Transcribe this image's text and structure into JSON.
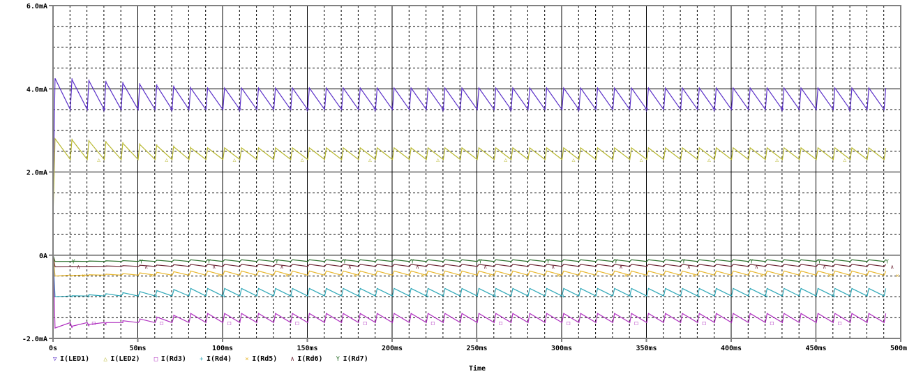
{
  "chart_data": {
    "type": "line",
    "title": "",
    "xlabel": "Time",
    "ylabel": "",
    "xlim": [
      0,
      500
    ],
    "ylim": [
      -2.0,
      6.0
    ],
    "x_unit": "ms",
    "y_unit": "mA",
    "grid": true,
    "legend_position": "bottom-left",
    "x_ticks": [
      "0s",
      "50ms",
      "100ms",
      "150ms",
      "200ms",
      "250ms",
      "300ms",
      "350ms",
      "400ms",
      "450ms",
      "500ms"
    ],
    "y_ticks": [
      "6.0mA",
      "4.0mA",
      "2.0mA",
      "0A",
      "-2.0mA"
    ],
    "period_ms": 10,
    "series": [
      {
        "name": "I(LED1)",
        "color": "#5a2fc8",
        "marker": "▽",
        "start": 1.4,
        "initial_peak": 4.25,
        "peak": 4.02,
        "trough": 3.5
      },
      {
        "name": "I(LED2)",
        "color": "#b8b830",
        "marker": "△",
        "start": 0.9,
        "initial_peak": 2.8,
        "peak": 2.58,
        "trough": 2.3
      },
      {
        "name": "I(Rd3)",
        "color": "#b030c0",
        "marker": "□",
        "start": 0.0,
        "initial_peak": -1.75,
        "peak": -1.4,
        "trough": -1.62
      },
      {
        "name": "I(Rd4)",
        "color": "#30a8b8",
        "marker": "+",
        "start": 0.0,
        "initial_peak": -1.0,
        "peak": -0.8,
        "trough": -0.98
      },
      {
        "name": "I(Rd5)",
        "color": "#e8b830",
        "marker": "×",
        "start": 0.0,
        "initial_peak": -0.5,
        "peak": -0.38,
        "trough": -0.48
      },
      {
        "name": "I(Rd6)",
        "color": "#702838",
        "marker": "∧",
        "start": 0.0,
        "initial_peak": -0.28,
        "peak": -0.22,
        "trough": -0.27
      },
      {
        "name": "I(Rd7)",
        "color": "#2a6e2a",
        "marker": "Y",
        "start": 0.0,
        "initial_peak": -0.15,
        "peak": -0.11,
        "trough": -0.15
      }
    ]
  },
  "legend": {
    "items": [
      {
        "marker": "▽",
        "label": "I(LED1)",
        "color": "#5a2fc8"
      },
      {
        "marker": "△",
        "label": "I(LED2)",
        "color": "#b8b830"
      },
      {
        "marker": "□",
        "label": "I(Rd3)",
        "color": "#b030c0"
      },
      {
        "marker": "+",
        "label": "I(Rd4)",
        "color": "#30a8b8"
      },
      {
        "marker": "×",
        "label": "I(Rd5)",
        "color": "#e8b830"
      },
      {
        "marker": "∧",
        "label": "I(Rd6)",
        "color": "#702838"
      },
      {
        "marker": "Y",
        "label": "I(Rd7)",
        "color": "#2a6e2a"
      }
    ]
  },
  "axis": {
    "x_title": "Time"
  }
}
